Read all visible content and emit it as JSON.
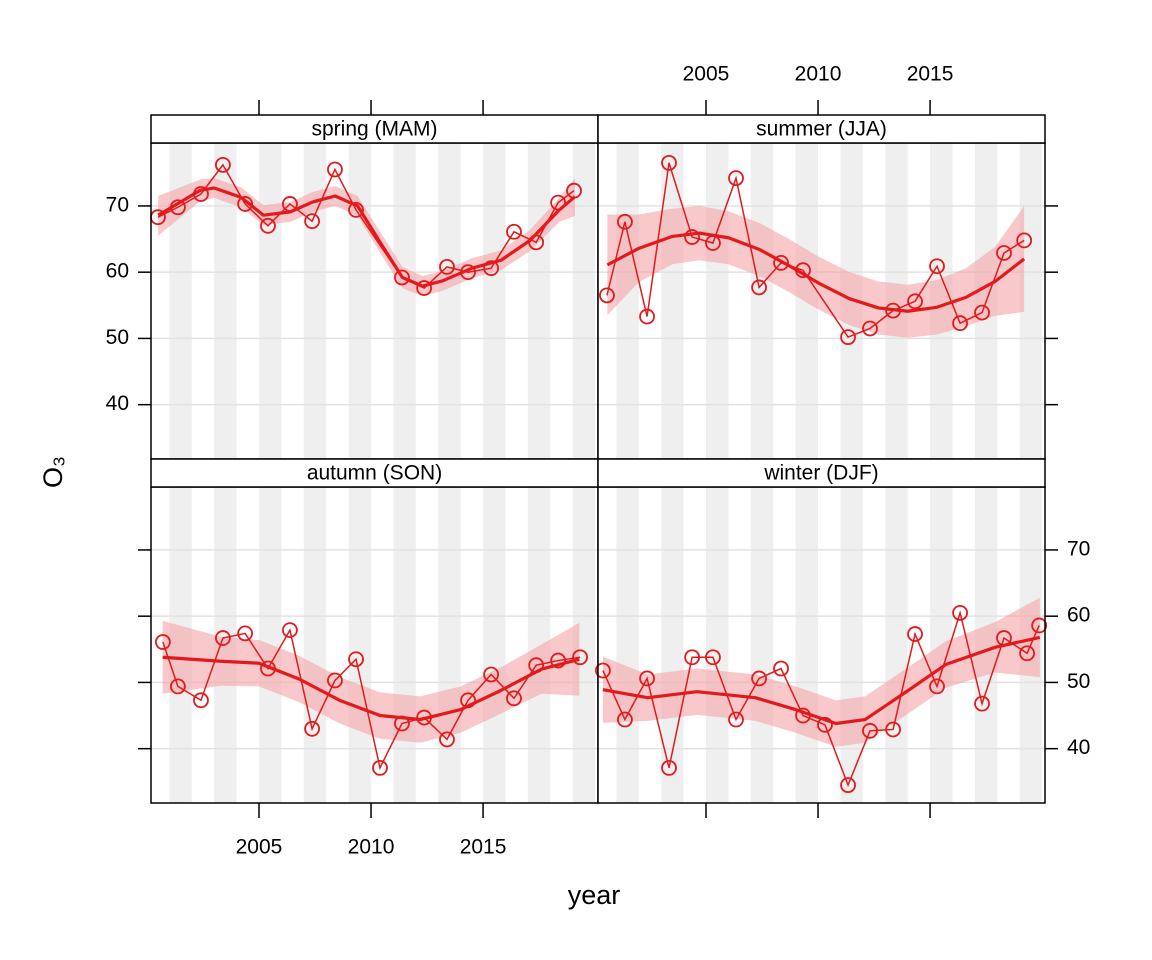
{
  "xlabel": "year",
  "ylabel": "O₃",
  "chart_data": [
    {
      "type": "line",
      "title": "spring (MAM)",
      "color": "#e31a1c",
      "x": [
        2000.49,
        2001.38,
        2002.41,
        2003.39,
        2004.38,
        2005.4,
        2006.38,
        2007.37,
        2008.39,
        2009.33,
        2011.38,
        2012.37,
        2013.39,
        2014.33,
        2015.36,
        2016.38,
        2017.37,
        2018.35,
        2019.06
      ],
      "values": [
        68.3,
        69.8,
        71.8,
        76.2,
        70.3,
        67.0,
        70.3,
        67.7,
        75.5,
        69.4,
        59.2,
        57.6,
        60.8,
        60.0,
        60.6,
        66.1,
        64.5,
        70.5,
        72.3
      ],
      "smooth": {
        "color": "#f4a4a7",
        "x": [
          2000.5,
          2002.4,
          2003.0,
          2004.2,
          2005.2,
          2006.4,
          2007.4,
          2008.4,
          2009.4,
          2010.5,
          2011.4,
          2012.3,
          2013.2,
          2014.5,
          2015.8,
          2017.1,
          2018.4,
          2019.1
        ],
        "values": [
          68.6,
          72.4,
          72.7,
          71.3,
          68.6,
          69.1,
          70.6,
          71.5,
          70.0,
          64.0,
          59.2,
          57.9,
          58.7,
          60.6,
          61.8,
          64.8,
          69.4,
          71.4
        ],
        "lower": [
          65.5,
          70.8,
          71.2,
          69.8,
          67.1,
          67.6,
          69.1,
          70.0,
          68.5,
          62.4,
          57.6,
          56.4,
          57.2,
          59.1,
          60.3,
          63.2,
          67.6,
          68.5
        ],
        "upper": [
          71.5,
          74.0,
          74.2,
          72.8,
          70.1,
          70.6,
          72.1,
          73.0,
          71.5,
          65.6,
          60.8,
          59.4,
          60.2,
          62.1,
          63.3,
          66.4,
          71.2,
          74.2
        ]
      },
      "xlim": [
        2000.18,
        2020.13
      ],
      "ylim": [
        31.8,
        79.5
      ],
      "xticks": [
        2005,
        2010,
        2015
      ],
      "yticks": [
        40,
        50,
        60,
        70
      ],
      "grid": true
    },
    {
      "type": "line",
      "title": "summer (JJA)",
      "color": "#e31a1c",
      "x": [
        2000.58,
        2001.38,
        2002.37,
        2003.35,
        2004.38,
        2005.31,
        2006.34,
        2007.37,
        2008.35,
        2009.33,
        2011.34,
        2012.32,
        2013.35,
        2014.33,
        2015.31,
        2016.34,
        2017.32,
        2018.3,
        2019.2
      ],
      "values": [
        56.5,
        67.6,
        53.3,
        76.5,
        65.3,
        64.4,
        74.2,
        57.7,
        61.4,
        60.3,
        50.2,
        51.5,
        54.2,
        55.6,
        60.9,
        52.3,
        53.9,
        62.9,
        64.8
      ],
      "smooth": {
        "color": "#f4a4a7",
        "x": [
          2000.6,
          2002.0,
          2003.5,
          2004.7,
          2006.0,
          2007.4,
          2008.7,
          2010.0,
          2011.4,
          2012.7,
          2014.0,
          2015.3,
          2016.6,
          2017.9,
          2019.2
        ],
        "values": [
          61.1,
          63.6,
          65.4,
          65.9,
          65.2,
          63.4,
          61.0,
          58.4,
          56.0,
          54.6,
          54.1,
          54.7,
          56.2,
          58.6,
          62.0
        ],
        "lower": [
          53.5,
          58.5,
          61.2,
          61.8,
          61.2,
          59.4,
          57.0,
          54.4,
          52.0,
          50.6,
          50.1,
          50.6,
          51.8,
          53.4,
          54.0
        ],
        "upper": [
          68.7,
          68.7,
          69.6,
          70.0,
          69.2,
          67.4,
          65.0,
          62.4,
          60.0,
          58.6,
          58.1,
          58.8,
          60.6,
          63.8,
          70.0
        ]
      },
      "xlim": [
        2000.18,
        2020.13
      ],
      "ylim": [
        31.8,
        79.5
      ],
      "xticks": [
        2005,
        2010,
        2015
      ],
      "yticks": [
        40,
        50,
        60,
        70
      ],
      "grid": true
    },
    {
      "type": "line",
      "title": "autumn (SON)",
      "color": "#e31a1c",
      "x": [
        2000.71,
        2001.38,
        2002.41,
        2003.39,
        2004.38,
        2005.4,
        2006.38,
        2007.37,
        2008.39,
        2009.33,
        2010.4,
        2011.38,
        2012.37,
        2013.39,
        2014.33,
        2015.36,
        2016.38,
        2017.37,
        2018.35,
        2019.33
      ],
      "values": [
        56.1,
        49.4,
        47.3,
        56.7,
        57.4,
        52.1,
        57.9,
        43.0,
        50.3,
        53.5,
        37.1,
        43.8,
        44.7,
        41.4,
        47.3,
        51.2,
        47.6,
        52.6,
        53.3,
        53.8
      ],
      "smooth": {
        "color": "#f4a4a7",
        "x": [
          2000.7,
          2003.3,
          2005.0,
          2006.8,
          2008.6,
          2010.4,
          2012.2,
          2014.0,
          2015.8,
          2017.6,
          2019.3
        ],
        "values": [
          53.8,
          53.2,
          52.9,
          50.5,
          47.3,
          45.0,
          44.4,
          45.9,
          48.8,
          52.0,
          53.5
        ],
        "lower": [
          48.3,
          49.5,
          49.4,
          47.0,
          43.8,
          41.5,
          40.9,
          42.4,
          45.3,
          48.3,
          48.0
        ],
        "upper": [
          59.3,
          56.9,
          56.4,
          54.0,
          50.8,
          48.5,
          47.9,
          49.4,
          52.3,
          55.7,
          59.0
        ]
      },
      "xlim": [
        2000.18,
        2020.13
      ],
      "ylim": [
        31.8,
        79.5
      ],
      "xticks": [
        2005,
        2010,
        2015
      ],
      "yticks": [
        40,
        50,
        60,
        70
      ],
      "grid": true
    },
    {
      "type": "line",
      "title": "winter (DJF)",
      "color": "#e31a1c",
      "x": [
        2000.4,
        2001.38,
        2002.37,
        2003.35,
        2004.38,
        2005.31,
        2006.34,
        2007.37,
        2008.35,
        2009.33,
        2010.31,
        2011.34,
        2012.32,
        2013.35,
        2014.33,
        2015.31,
        2016.34,
        2017.32,
        2018.3,
        2019.33,
        2019.87
      ],
      "values": [
        51.8,
        44.4,
        50.6,
        37.1,
        53.8,
        53.8,
        44.4,
        50.6,
        52.1,
        45.0,
        43.6,
        34.5,
        42.7,
        42.9,
        57.3,
        49.4,
        60.5,
        46.8,
        56.7,
        54.4,
        58.6
      ],
      "smooth": {
        "color": "#f4a4a7",
        "x": [
          2000.4,
          2002.4,
          2004.6,
          2007.2,
          2009.0,
          2010.8,
          2012.1,
          2013.9,
          2015.7,
          2017.9,
          2019.9
        ],
        "values": [
          48.9,
          47.7,
          48.6,
          47.7,
          45.9,
          43.8,
          44.4,
          48.5,
          52.7,
          55.3,
          56.8
        ],
        "lower": [
          43.9,
          44.2,
          45.1,
          44.2,
          42.4,
          40.3,
          40.9,
          45.0,
          49.2,
          51.5,
          50.8
        ],
        "upper": [
          53.9,
          51.2,
          52.1,
          51.2,
          49.4,
          47.3,
          47.9,
          52.0,
          56.2,
          59.1,
          62.8
        ]
      },
      "xlim": [
        2000.18,
        2020.13
      ],
      "ylim": [
        31.8,
        79.5
      ],
      "xticks": [
        2005,
        2010,
        2015
      ],
      "yticks": [
        40,
        50,
        60,
        70
      ],
      "grid": true
    }
  ]
}
